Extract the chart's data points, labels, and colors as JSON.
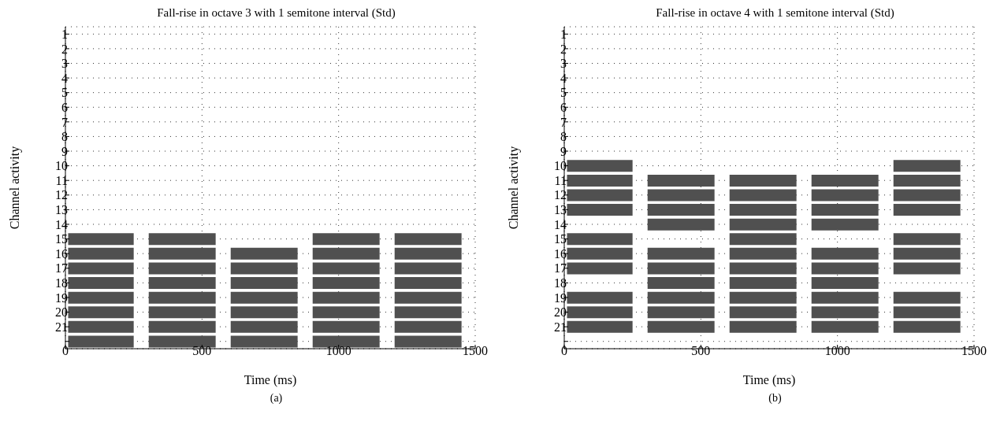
{
  "chart_data": [
    {
      "type": "bar",
      "orientation": "horizontal",
      "title": "Fall-rise in octave 3 with 1 semitone interval (Std)",
      "xlabel": "Time (ms)",
      "ylabel": "Channel activity",
      "annotations": [
        "(a)"
      ],
      "grid": true,
      "categories": [
        "1",
        "2",
        "3",
        "4",
        "5",
        "6",
        "7",
        "8",
        "9",
        "10",
        "11",
        "12",
        "13",
        "14",
        "15",
        "16",
        "17",
        "18",
        "19",
        "20",
        "21",
        null
      ],
      "xlim": [
        0,
        1500
      ],
      "xticks": [
        0,
        500,
        1000,
        1500
      ],
      "series": [
        {
          "color": "#505050",
          "base": [
            null,
            null,
            null,
            null,
            null,
            null,
            null,
            null,
            null,
            null,
            null,
            null,
            null,
            null,
            10,
            10,
            10,
            10,
            10,
            10,
            10,
            10
          ],
          "values": [
            null,
            null,
            null,
            null,
            null,
            null,
            null,
            null,
            null,
            null,
            null,
            null,
            null,
            null,
            240,
            240,
            240,
            240,
            240,
            240,
            240,
            240
          ]
        },
        {
          "color": "#505050",
          "base": [
            null,
            null,
            null,
            null,
            null,
            null,
            null,
            null,
            null,
            null,
            null,
            null,
            null,
            null,
            305,
            305,
            305,
            305,
            305,
            305,
            305,
            305
          ],
          "values": [
            null,
            null,
            null,
            null,
            null,
            null,
            null,
            null,
            null,
            null,
            null,
            null,
            null,
            null,
            245,
            245,
            245,
            245,
            245,
            245,
            245,
            245
          ]
        },
        {
          "color": "#505050",
          "base": [
            null,
            null,
            null,
            null,
            null,
            null,
            null,
            null,
            null,
            null,
            null,
            null,
            null,
            null,
            null,
            605,
            605,
            605,
            605,
            605,
            605,
            605
          ],
          "values": [
            null,
            null,
            null,
            null,
            null,
            null,
            null,
            null,
            null,
            null,
            null,
            null,
            null,
            null,
            null,
            245,
            245,
            245,
            245,
            245,
            245,
            245
          ]
        },
        {
          "color": "#505050",
          "base": [
            null,
            null,
            null,
            null,
            null,
            null,
            null,
            null,
            null,
            null,
            null,
            null,
            null,
            null,
            905,
            905,
            905,
            905,
            905,
            905,
            905,
            905
          ],
          "values": [
            null,
            null,
            null,
            null,
            null,
            null,
            null,
            null,
            null,
            null,
            null,
            null,
            null,
            null,
            245,
            245,
            245,
            245,
            245,
            245,
            245,
            245
          ]
        },
        {
          "color": "#505050",
          "base": [
            null,
            null,
            null,
            null,
            null,
            null,
            null,
            null,
            null,
            null,
            null,
            null,
            null,
            null,
            1205,
            1205,
            1205,
            1205,
            1205,
            1205,
            1205,
            1205
          ],
          "values": [
            null,
            null,
            null,
            null,
            null,
            null,
            null,
            null,
            null,
            null,
            null,
            null,
            null,
            null,
            245,
            245,
            245,
            245,
            245,
            245,
            245,
            245
          ]
        }
      ]
    },
    {
      "type": "bar",
      "orientation": "horizontal",
      "title": "Fall-rise in octave 4 with 1 semitone interval (Std)",
      "xlabel": "Time (ms)",
      "ylabel": "Channel activity",
      "annotations": [
        "(b)"
      ],
      "grid": true,
      "categories": [
        "1",
        "2",
        "3",
        "4",
        "5",
        "6",
        "7",
        "8",
        "9",
        "10",
        "11",
        "12",
        "13",
        "14",
        "15",
        "16",
        "17",
        "18",
        "19",
        "20",
        "21",
        null
      ],
      "xlim": [
        0,
        1500
      ],
      "xticks": [
        0,
        500,
        1000,
        1500
      ],
      "series": [
        {
          "color": "#505050",
          "base": [
            null,
            null,
            null,
            null,
            null,
            null,
            null,
            null,
            null,
            10,
            10,
            10,
            10,
            null,
            10,
            10,
            10,
            null,
            10,
            10,
            10,
            null
          ],
          "values": [
            null,
            null,
            null,
            null,
            null,
            null,
            null,
            null,
            null,
            240,
            240,
            240,
            240,
            null,
            240,
            240,
            240,
            null,
            240,
            240,
            240,
            null
          ]
        },
        {
          "color": "#505050",
          "base": [
            null,
            null,
            null,
            null,
            null,
            null,
            null,
            null,
            null,
            null,
            305,
            305,
            305,
            305,
            null,
            305,
            305,
            305,
            305,
            305,
            305,
            null
          ],
          "values": [
            null,
            null,
            null,
            null,
            null,
            null,
            null,
            null,
            null,
            null,
            245,
            245,
            245,
            245,
            null,
            245,
            245,
            245,
            245,
            245,
            245,
            null
          ]
        },
        {
          "color": "#505050",
          "base": [
            null,
            null,
            null,
            null,
            null,
            null,
            null,
            null,
            null,
            null,
            605,
            605,
            605,
            605,
            605,
            605,
            605,
            605,
            605,
            605,
            605,
            null
          ],
          "values": [
            null,
            null,
            null,
            null,
            null,
            null,
            null,
            null,
            null,
            null,
            245,
            245,
            245,
            245,
            245,
            245,
            245,
            245,
            245,
            245,
            245,
            null
          ]
        },
        {
          "color": "#505050",
          "base": [
            null,
            null,
            null,
            null,
            null,
            null,
            null,
            null,
            null,
            null,
            905,
            905,
            905,
            905,
            null,
            905,
            905,
            905,
            905,
            905,
            905,
            null
          ],
          "values": [
            null,
            null,
            null,
            null,
            null,
            null,
            null,
            null,
            null,
            null,
            245,
            245,
            245,
            245,
            null,
            245,
            245,
            245,
            245,
            245,
            245,
            null
          ]
        },
        {
          "color": "#505050",
          "base": [
            null,
            null,
            null,
            null,
            null,
            null,
            null,
            null,
            null,
            1205,
            1205,
            1205,
            1205,
            null,
            1205,
            1205,
            1205,
            null,
            1205,
            1205,
            1205,
            null
          ],
          "values": [
            null,
            null,
            null,
            null,
            null,
            null,
            null,
            null,
            null,
            245,
            245,
            245,
            245,
            null,
            245,
            245,
            245,
            null,
            245,
            245,
            245,
            null
          ]
        }
      ]
    }
  ]
}
